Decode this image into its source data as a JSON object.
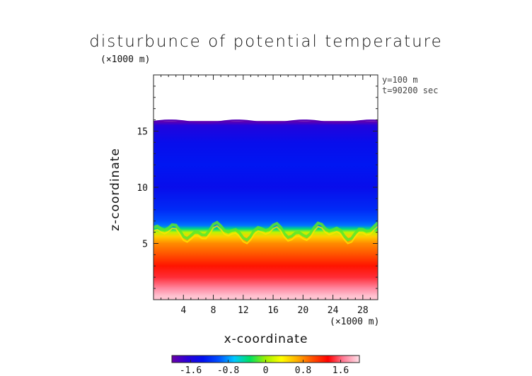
{
  "chart_data": {
    "type": "heatmap",
    "title": "disturbunce of potential temperature",
    "xlabel": "x-coordinate",
    "ylabel": "z-coordinate",
    "x_unit": "(×1000 m)",
    "y_unit": "(×1000 m)",
    "annotations": [
      "y=100 m",
      "t=90200 sec"
    ],
    "xlim": [
      0,
      30
    ],
    "ylim": [
      0,
      20
    ],
    "x_ticks": [
      4,
      8,
      12,
      16,
      20,
      24,
      28
    ],
    "y_ticks": [
      5,
      10,
      15
    ],
    "colorbar": {
      "range": [
        -2.0,
        2.0
      ],
      "ticks": [
        "-1.6",
        "-0.8",
        "0",
        "0.8",
        "1.6"
      ],
      "tick_values": [
        -1.6,
        -0.8,
        0,
        0.8,
        1.6
      ],
      "colors": [
        "#6a00a8",
        "#2a00d8",
        "#0010f0",
        "#0050ff",
        "#00c8ff",
        "#00e060",
        "#a0f000",
        "#ffff00",
        "#ffb000",
        "#ff5000",
        "#ff0000",
        "#ff7f9a",
        "#ffe0e8"
      ]
    },
    "profile": {
      "z": [
        0.3,
        1,
        2,
        3,
        4,
        5,
        5.6,
        6.0,
        6.3,
        6.6,
        7,
        8,
        10,
        12,
        14,
        15.5,
        15.9
      ],
      "value": [
        1.9,
        1.7,
        1.45,
        1.25,
        1.0,
        0.8,
        0.55,
        0.1,
        -0.4,
        -0.9,
        -1.0,
        -1.2,
        -1.4,
        -1.3,
        -1.4,
        -1.6,
        -2.0
      ]
    },
    "data_top_z": 15.9
  }
}
